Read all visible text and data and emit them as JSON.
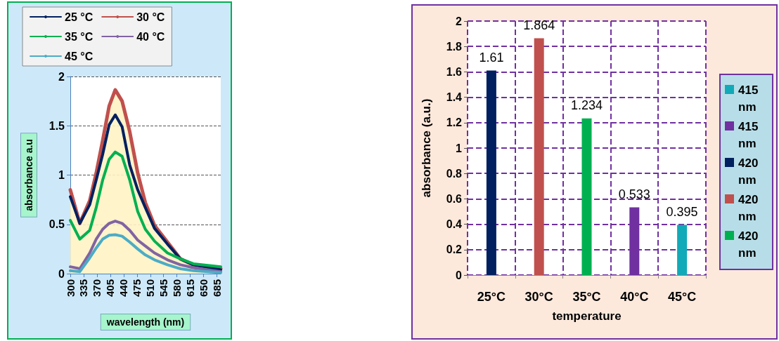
{
  "chart_data": [
    {
      "type": "line",
      "xlabel": "wavelength (nm)",
      "ylabel": "absorbance a.u",
      "legend": "top",
      "grid": "y",
      "xlim": [
        300,
        695
      ],
      "xticks": [
        300,
        335,
        370,
        405,
        440,
        475,
        510,
        545,
        580,
        615,
        650,
        685
      ],
      "ylim": [
        0,
        2
      ],
      "yticks": [
        0,
        0.5,
        1,
        1.5,
        2
      ],
      "x": [
        300,
        325,
        351,
        368,
        385,
        402,
        418,
        436,
        456,
        477,
        497,
        521,
        555,
        589,
        623,
        695
      ],
      "series": [
        {
          "name": "25 °C",
          "color": "#002060",
          "values": [
            0.78,
            0.51,
            0.7,
            0.95,
            1.21,
            1.51,
            1.61,
            1.49,
            1.1,
            0.85,
            0.67,
            0.46,
            0.3,
            0.15,
            0.09,
            0.04
          ]
        },
        {
          "name": "30 °C",
          "color": "#c0504d",
          "type": "area",
          "values": [
            0.85,
            0.51,
            0.74,
            1.02,
            1.35,
            1.7,
            1.864,
            1.75,
            1.44,
            1.02,
            0.72,
            0.49,
            0.32,
            0.15,
            0.09,
            0.05
          ]
        },
        {
          "name": "35 °C",
          "color": "#00b050",
          "values": [
            0.54,
            0.35,
            0.44,
            0.67,
            0.95,
            1.16,
            1.234,
            1.19,
            0.95,
            0.63,
            0.45,
            0.33,
            0.21,
            0.15,
            0.1,
            0.07
          ]
        },
        {
          "name": "40 °C",
          "color": "#8064a2",
          "values": [
            0.07,
            0.05,
            0.21,
            0.35,
            0.45,
            0.51,
            0.533,
            0.51,
            0.44,
            0.34,
            0.28,
            0.21,
            0.14,
            0.09,
            0.06,
            0.02
          ]
        },
        {
          "name": "45 °C",
          "color": "#4bacc6",
          "values": [
            0.03,
            0.02,
            0.16,
            0.26,
            0.35,
            0.39,
            0.395,
            0.38,
            0.32,
            0.25,
            0.19,
            0.14,
            0.09,
            0.05,
            0.03,
            0.01
          ]
        }
      ]
    },
    {
      "type": "bar",
      "xlabel": "temperature",
      "ylabel": "absorbance (a.u.)",
      "legend": "right",
      "grid": true,
      "data_labels": true,
      "categories": [
        "25°C",
        "30°C",
        "35°C",
        "40°C",
        "45°C"
      ],
      "ylim": [
        0,
        2
      ],
      "yticks": [
        0,
        0.2,
        0.4,
        0.6,
        0.8,
        1,
        1.2,
        1.4,
        1.6,
        1.8,
        2
      ],
      "series": [
        {
          "name": "415 nm",
          "color": "#12a9b8",
          "values": [
            null,
            null,
            null,
            null,
            0.395
          ]
        },
        {
          "name": "415 nm",
          "color": "#7030a0",
          "values": [
            null,
            null,
            null,
            0.533,
            null
          ]
        },
        {
          "name": "420 nm",
          "color": "#002060",
          "values": [
            1.61,
            null,
            null,
            null,
            null
          ]
        },
        {
          "name": "420 nm",
          "color": "#c0504d",
          "values": [
            null,
            1.864,
            null,
            null,
            null
          ]
        },
        {
          "name": "420 nm",
          "color": "#00b050",
          "values": [
            null,
            null,
            1.234,
            null,
            null
          ]
        }
      ]
    }
  ]
}
